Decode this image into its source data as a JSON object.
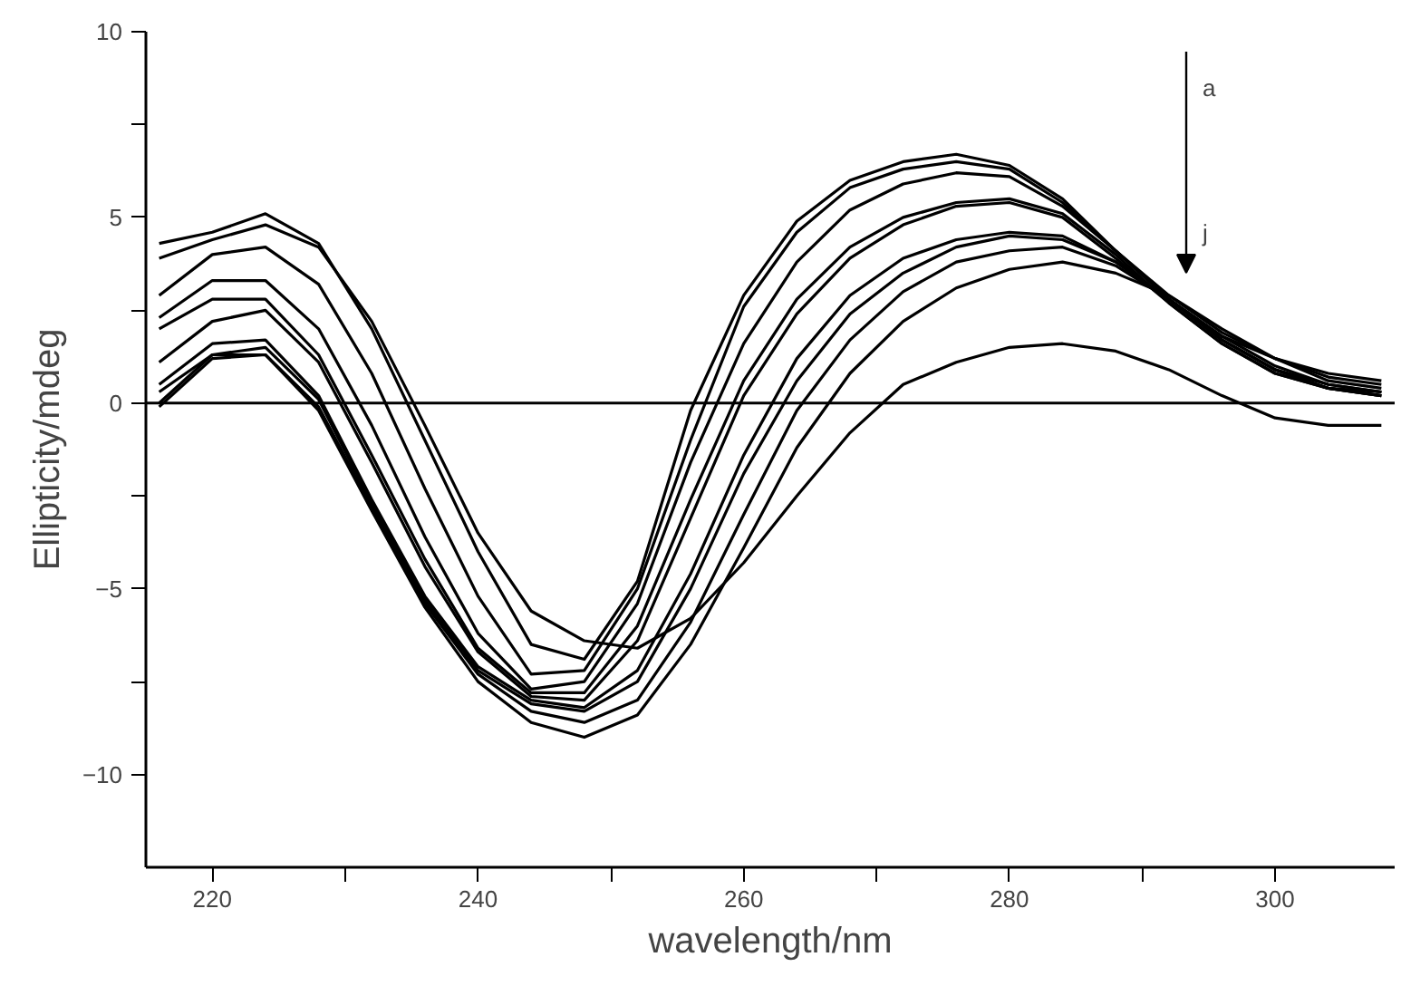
{
  "chart_data": {
    "type": "line",
    "xlabel": "wavelength/nm",
    "ylabel": "Ellipticity/mdeg",
    "x": [
      216,
      220,
      224,
      228,
      232,
      236,
      240,
      244,
      248,
      252,
      256,
      260,
      264,
      268,
      272,
      276,
      280,
      284,
      288,
      292,
      296,
      300,
      304,
      308
    ],
    "series": [
      {
        "color": "#000000",
        "values": [
          4.3,
          4.6,
          5.1,
          4.3,
          2.0,
          -1.0,
          -4.0,
          -6.5,
          -6.9,
          -4.8,
          -0.2,
          2.9,
          4.9,
          6.0,
          6.5,
          6.7,
          6.4,
          5.5,
          4.1,
          2.8,
          1.8,
          1.2,
          0.8,
          0.6
        ]
      },
      {
        "color": "#000000",
        "values": [
          3.9,
          4.4,
          4.8,
          4.2,
          2.2,
          -0.6,
          -3.5,
          -5.6,
          -6.4,
          -6.6,
          -5.8,
          -4.3,
          -2.5,
          -0.8,
          0.5,
          1.1,
          1.5,
          1.6,
          1.4,
          0.9,
          0.2,
          -0.4,
          -0.6,
          -0.6
        ]
      },
      {
        "color": "#000000",
        "values": [
          2.9,
          4.0,
          4.2,
          3.2,
          0.8,
          -2.3,
          -5.2,
          -7.3,
          -7.2,
          -5.0,
          -1.0,
          2.6,
          4.6,
          5.8,
          6.3,
          6.5,
          6.3,
          5.4,
          4.1,
          2.9,
          1.9,
          1.2,
          0.6,
          0.4
        ]
      },
      {
        "color": "#000000",
        "values": [
          2.3,
          3.3,
          3.3,
          2.0,
          -0.6,
          -3.6,
          -6.2,
          -7.7,
          -7.5,
          -5.4,
          -1.6,
          1.6,
          3.8,
          5.2,
          5.9,
          6.2,
          6.1,
          5.3,
          4.1,
          2.8,
          1.7,
          0.9,
          0.5,
          0.3
        ]
      },
      {
        "color": "#000000",
        "values": [
          2.0,
          2.8,
          2.8,
          1.3,
          -1.4,
          -4.2,
          -6.6,
          -7.8,
          -7.8,
          -6.0,
          -2.6,
          0.6,
          2.8,
          4.2,
          5.0,
          5.4,
          5.5,
          5.1,
          4.0,
          2.7,
          1.6,
          0.8,
          0.4,
          0.3
        ]
      },
      {
        "color": "#000000",
        "values": [
          1.1,
          2.2,
          2.5,
          1.1,
          -1.6,
          -4.4,
          -6.7,
          -7.9,
          -8.0,
          -6.4,
          -3.1,
          0.2,
          2.4,
          3.9,
          4.8,
          5.3,
          5.4,
          5.0,
          3.9,
          2.7,
          1.6,
          0.8,
          0.4,
          0.2
        ]
      },
      {
        "color": "#000000",
        "values": [
          0.5,
          1.6,
          1.7,
          0.2,
          -2.6,
          -5.2,
          -7.1,
          -8.0,
          -8.2,
          -7.2,
          -4.6,
          -1.4,
          1.2,
          2.9,
          3.9,
          4.4,
          4.6,
          4.5,
          3.8,
          2.8,
          1.7,
          0.9,
          0.4,
          0.2
        ]
      },
      {
        "color": "#000000",
        "values": [
          0.3,
          1.3,
          1.5,
          0.1,
          -2.7,
          -5.3,
          -7.2,
          -8.1,
          -8.3,
          -7.5,
          -5.0,
          -1.9,
          0.6,
          2.4,
          3.5,
          4.2,
          4.5,
          4.4,
          3.8,
          2.8,
          1.7,
          0.9,
          0.4,
          0.2
        ]
      },
      {
        "color": "#000000",
        "values": [
          0.0,
          1.3,
          1.3,
          -0.1,
          -2.8,
          -5.4,
          -7.3,
          -8.3,
          -8.6,
          -8.0,
          -5.9,
          -3.0,
          -0.2,
          1.7,
          3.0,
          3.8,
          4.1,
          4.2,
          3.7,
          2.8,
          1.8,
          1.0,
          0.5,
          0.3
        ]
      },
      {
        "color": "#000000",
        "values": [
          -0.1,
          1.2,
          1.3,
          -0.2,
          -2.9,
          -5.5,
          -7.5,
          -8.6,
          -9.0,
          -8.4,
          -6.5,
          -3.9,
          -1.2,
          0.8,
          2.2,
          3.1,
          3.6,
          3.8,
          3.5,
          2.9,
          2.0,
          1.2,
          0.7,
          0.5
        ]
      }
    ],
    "xlim": [
      215,
      309
    ],
    "xticks": [
      220,
      {
        "value": 230,
        "label": null
      },
      240,
      {
        "value": 250,
        "label": null
      },
      260,
      {
        "value": 270,
        "label": null
      },
      280,
      {
        "value": 290,
        "label": null
      },
      300
    ],
    "ylim": [
      -12.5,
      10
    ],
    "yticks": [
      -10,
      {
        "value": -7.5,
        "label": null
      },
      -5,
      {
        "value": -2.5,
        "label": null
      },
      0,
      {
        "value": 2.5,
        "label": null
      },
      5,
      {
        "value": 7.5,
        "label": null
      },
      10
    ],
    "ref_lines": [
      {
        "axis": "y",
        "value": 0,
        "color": "#000000"
      }
    ],
    "annotations": [
      "a",
      "j"
    ],
    "grid": false,
    "marker": "none",
    "line_style": "solid"
  }
}
